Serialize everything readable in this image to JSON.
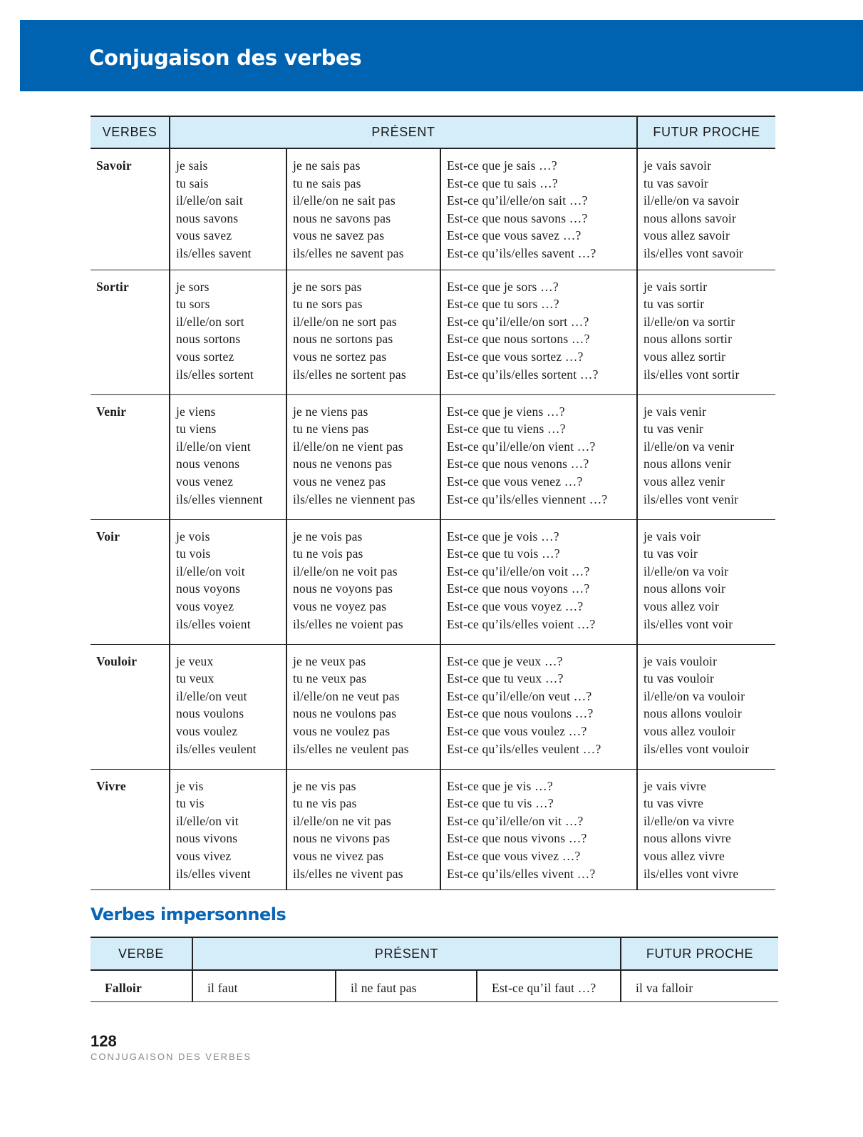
{
  "header": {
    "title": "Conjugaison des verbes",
    "banner_color": "#0063b1",
    "header_cell_color": "#d5edf9"
  },
  "main_table": {
    "headers": {
      "verbs": "VERBES",
      "present": "PRÉSENT",
      "futur": "FUTUR PROCHE"
    },
    "rows": [
      {
        "verb": "Savoir",
        "affirm": [
          "je sais",
          "tu sais",
          "il/elle/on sait",
          "nous savons",
          "vous savez",
          "ils/elles savent"
        ],
        "neg": [
          "je ne sais pas",
          "tu ne sais pas",
          "il/elle/on ne sait pas",
          "nous ne savons pas",
          "vous ne savez pas",
          "ils/elles ne savent pas"
        ],
        "quest": [
          "Est-ce que je sais …?",
          "Est-ce que tu sais …?",
          "Est-ce qu’il/elle/on sait …?",
          "Est-ce que nous savons …?",
          "Est-ce que vous savez …?",
          "Est-ce qu’ils/elles savent …?"
        ],
        "futur": [
          "je vais savoir",
          "tu vas savoir",
          "il/elle/on va savoir",
          "nous allons savoir",
          "vous allez savoir",
          "ils/elles vont savoir"
        ]
      },
      {
        "verb": "Sortir",
        "affirm": [
          "je sors",
          "tu sors",
          "il/elle/on sort",
          "nous sortons",
          "vous sortez",
          "ils/elles sortent"
        ],
        "neg": [
          "je ne sors pas",
          "tu ne sors pas",
          "il/elle/on ne sort pas",
          "nous ne sortons pas",
          "vous ne sortez pas",
          "ils/elles ne sortent pas"
        ],
        "quest": [
          "Est-ce que je sors …?",
          "Est-ce que tu sors …?",
          "Est-ce qu’il/elle/on sort …?",
          "Est-ce que nous sortons …?",
          "Est-ce que vous sortez …?",
          "Est-ce qu’ils/elles sortent …?"
        ],
        "futur": [
          "je vais sortir",
          "tu vas sortir",
          "il/elle/on va sortir",
          "nous allons sortir",
          "vous allez sortir",
          "ils/elles vont sortir"
        ]
      },
      {
        "verb": "Venir",
        "affirm": [
          "je viens",
          "tu viens",
          "il/elle/on vient",
          "nous venons",
          "vous venez",
          "ils/elles viennent"
        ],
        "neg": [
          "je ne viens pas",
          "tu ne viens pas",
          "il/elle/on ne vient pas",
          "nous ne venons pas",
          "vous ne venez pas",
          "ils/elles ne viennent pas"
        ],
        "quest": [
          "Est-ce que je viens …?",
          "Est-ce que tu viens …?",
          "Est-ce qu’il/elle/on vient …?",
          "Est-ce que nous venons …?",
          "Est-ce que vous venez …?",
          "Est-ce qu’ils/elles viennent …?"
        ],
        "futur": [
          "je vais venir",
          "tu vas venir",
          "il/elle/on va venir",
          "nous allons venir",
          "vous allez venir",
          "ils/elles vont venir"
        ]
      },
      {
        "verb": "Voir",
        "affirm": [
          "je vois",
          "tu vois",
          "il/elle/on voit",
          "nous voyons",
          "vous voyez",
          "ils/elles voient"
        ],
        "neg": [
          "je ne vois pas",
          "tu ne vois pas",
          "il/elle/on ne voit pas",
          "nous ne voyons pas",
          "vous ne voyez pas",
          "ils/elles ne voient pas"
        ],
        "quest": [
          "Est-ce que je vois …?",
          "Est-ce que tu vois …?",
          "Est-ce qu’il/elle/on voit …?",
          "Est-ce que nous voyons …?",
          "Est-ce que vous voyez …?",
          "Est-ce qu’ils/elles voient …?"
        ],
        "futur": [
          "je vais voir",
          "tu vas voir",
          "il/elle/on va voir",
          "nous allons voir",
          "vous allez voir",
          "ils/elles vont voir"
        ]
      },
      {
        "verb": "Vouloir",
        "affirm": [
          "je veux",
          "tu veux",
          "il/elle/on veut",
          "nous voulons",
          "vous voulez",
          "ils/elles veulent"
        ],
        "neg": [
          "je ne veux pas",
          "tu ne veux pas",
          "il/elle/on ne veut pas",
          "nous ne voulons pas",
          "vous ne voulez pas",
          "ils/elles ne veulent pas"
        ],
        "quest": [
          "Est-ce que je veux …?",
          "Est-ce que tu veux …?",
          "Est-ce qu’il/elle/on veut …?",
          "Est-ce que nous voulons …?",
          "Est-ce que vous voulez …?",
          "Est-ce qu’ils/elles veulent …?"
        ],
        "futur": [
          "je vais vouloir",
          "tu vas vouloir",
          "il/elle/on va vouloir",
          "nous allons vouloir",
          "vous allez vouloir",
          "ils/elles vont vouloir"
        ]
      },
      {
        "verb": "Vivre",
        "affirm": [
          "je vis",
          "tu vis",
          "il/elle/on vit",
          "nous vivons",
          "vous vivez",
          "ils/elles vivent"
        ],
        "neg": [
          "je ne vis pas",
          "tu ne vis pas",
          "il/elle/on ne vit pas",
          "nous ne vivons pas",
          "vous ne vivez pas",
          "ils/elles ne vivent pas"
        ],
        "quest": [
          "Est-ce que je vis …?",
          "Est-ce que tu vis …?",
          "Est-ce qu’il/elle/on vit …?",
          "Est-ce que nous vivons …?",
          "Est-ce que vous vivez …?",
          "Est-ce qu’ils/elles vivent …?"
        ],
        "futur": [
          "je vais vivre",
          "tu vas vivre",
          "il/elle/on va vivre",
          "nous allons vivre",
          "vous allez vivre",
          "ils/elles vont vivre"
        ]
      }
    ]
  },
  "impersonal": {
    "title": "Verbes impersonnels",
    "headers": {
      "verb": "VERBE",
      "present": "PRÉSENT",
      "futur": "FUTUR PROCHE"
    },
    "row": {
      "verb": "Falloir",
      "affirm": "il faut",
      "neg": "il ne faut pas",
      "quest": "Est-ce qu’il faut …?",
      "futur": "il va falloir"
    }
  },
  "footer": {
    "page_number": "128",
    "section": "CONJUGAISON DES VERBES"
  }
}
